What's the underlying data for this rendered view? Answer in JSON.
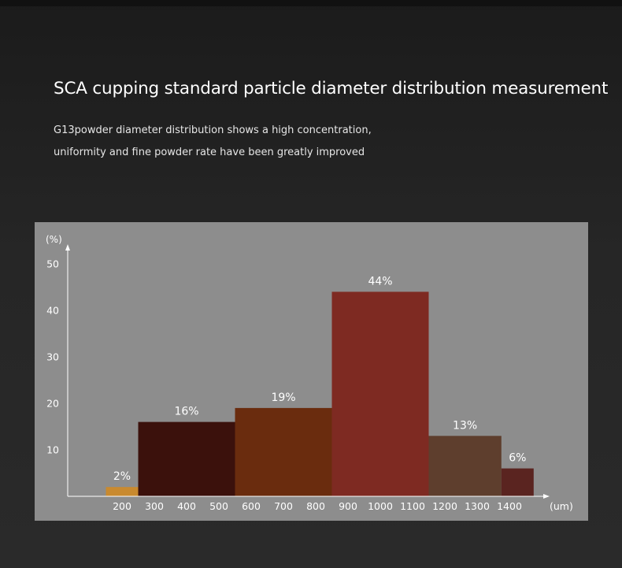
{
  "page": {
    "title": "SCA cupping standard particle diameter distribution measurement",
    "subtitle_line1": "G13powder diameter distribution shows a high concentration,",
    "subtitle_line2": "uniformity and fine powder rate have been greatly improved"
  },
  "chart_data": {
    "type": "bar",
    "y_unit": "(%)",
    "x_unit": "(um)",
    "ylim": [
      0,
      55
    ],
    "y_ticks": [
      10,
      20,
      30,
      40,
      50
    ],
    "x_ticks": [
      200,
      300,
      400,
      500,
      600,
      700,
      800,
      900,
      1000,
      1100,
      1200,
      1300,
      1400
    ],
    "grid": false,
    "legend": "none",
    "bars": [
      {
        "x_start": 150,
        "x_end": 250,
        "value": 2,
        "label": "2%",
        "color": "#c98a2f"
      },
      {
        "x_start": 250,
        "x_end": 550,
        "value": 16,
        "label": "16%",
        "color": "#3b110c"
      },
      {
        "x_start": 550,
        "x_end": 850,
        "value": 19,
        "label": "19%",
        "color": "#6a2c0e"
      },
      {
        "x_start": 850,
        "x_end": 1150,
        "value": 44,
        "label": "44%",
        "color": "#7e2a22"
      },
      {
        "x_start": 1150,
        "x_end": 1375,
        "value": 13,
        "label": "13%",
        "color": "#5e3e2d"
      },
      {
        "x_start": 1375,
        "x_end": 1475,
        "value": 6,
        "label": "6%",
        "color": "#5a2420"
      }
    ]
  }
}
